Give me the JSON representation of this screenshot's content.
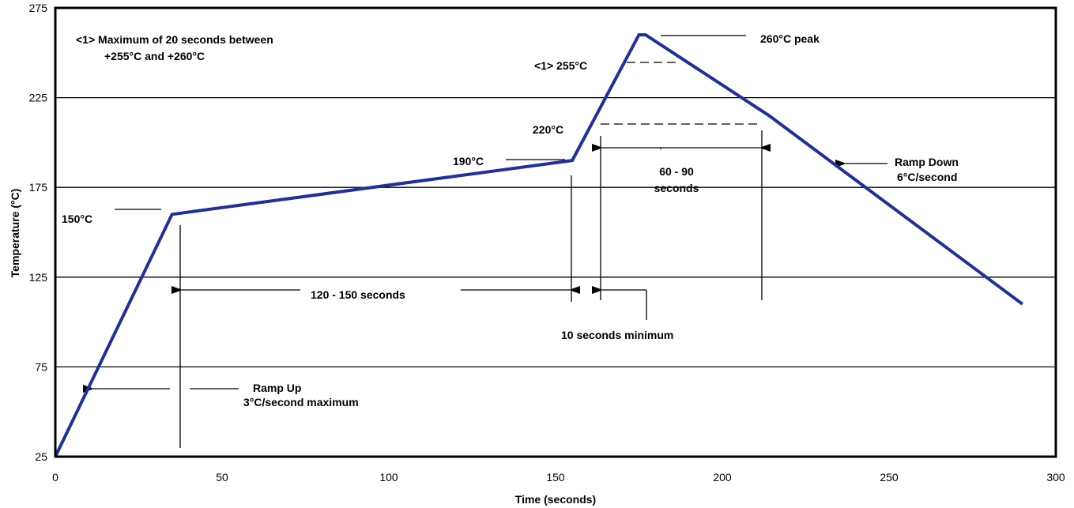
{
  "chart_data": {
    "type": "line",
    "xlabel": "Time (seconds)",
    "ylabel": "Temperature (°C)",
    "xlim": [
      0,
      300
    ],
    "ylim": [
      25,
      275
    ],
    "xticks": [
      0,
      50,
      100,
      150,
      200,
      250,
      300
    ],
    "yticks": [
      25,
      75,
      125,
      175,
      225,
      275
    ],
    "grid": "horizontal",
    "line_color": "#1f2f9c",
    "series": [
      {
        "x": [
          0,
          35,
          155,
          175,
          177,
          214,
          290
        ],
        "y": [
          25,
          160,
          190,
          260,
          260,
          215,
          110
        ]
      }
    ],
    "annotations": {
      "note_line1": "<1> Maximum of 20 seconds between",
      "note_line2": "+255°C and +260°C",
      "peak": "260°C peak",
      "t255": "<1> 255°C",
      "t220": "220°C",
      "t190": "190°C",
      "t150": "150°C",
      "soak": "120 - 150 seconds",
      "liquidus_line1": "60 - 90",
      "liquidus_line2": "seconds",
      "min": "10 seconds minimum",
      "ramp_up_line1": "Ramp Up",
      "ramp_up_line2": "3°C/second maximum",
      "ramp_down_line1": "Ramp Down",
      "ramp_down_line2": "6°C/second"
    }
  }
}
